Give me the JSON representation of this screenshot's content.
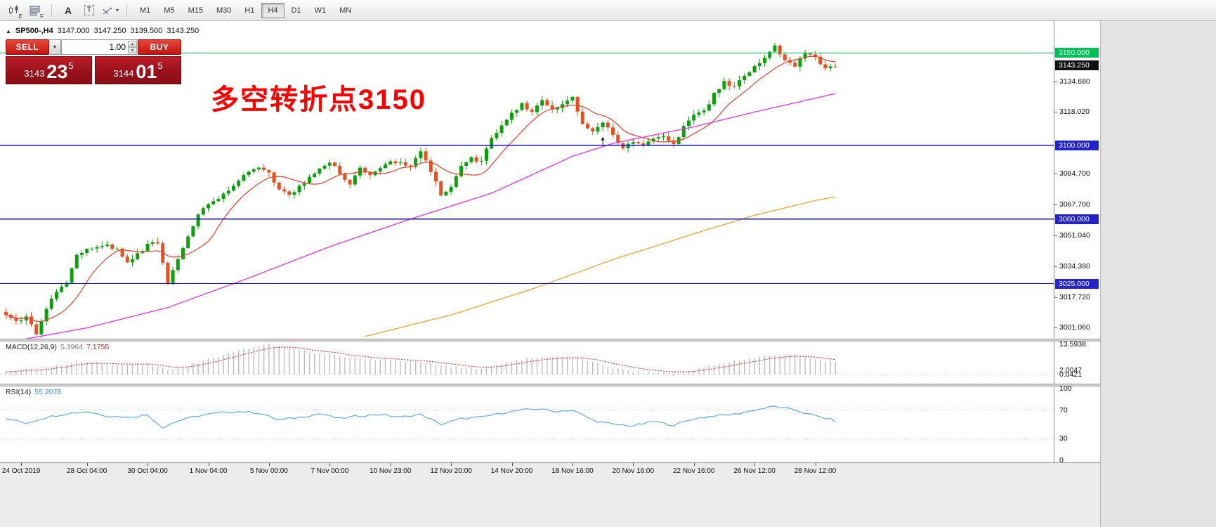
{
  "toolbar": {
    "icons": [
      {
        "name": "candlestick-chart-icon",
        "sub": "E"
      },
      {
        "name": "chart-profiles-icon",
        "sub": "F"
      },
      {
        "name": "text-label-icon",
        "glyph": "A"
      },
      {
        "name": "text-tool-icon",
        "glyph": "T"
      },
      {
        "name": "line-studies-icon"
      }
    ],
    "dropdown_caret": "▾",
    "timeframes": [
      "M1",
      "M5",
      "M15",
      "M30",
      "H1",
      "H4",
      "D1",
      "W1",
      "MN"
    ],
    "active_timeframe": "H4"
  },
  "chart": {
    "header": {
      "marker": "▲",
      "symbol": "SP500-,H4",
      "open": "3147.000",
      "high": "3147.250",
      "low": "3139.500",
      "close": "3143.250"
    },
    "trade_panel": {
      "sell_label": "SELL",
      "buy_label": "BUY",
      "volume": "1.00",
      "bid": {
        "prefix": "3143",
        "big": "23",
        "sup": "5"
      },
      "ask": {
        "prefix": "3144",
        "big": "01",
        "sup": "5"
      },
      "icons": {
        "dropdown": "▼",
        "spin_up": "▲",
        "spin_down": "▼"
      }
    },
    "annotation": "多空转折点3150",
    "price_axis": {
      "badges": [
        {
          "text": "3150.000",
          "price": 3150.0,
          "type": "green"
        },
        {
          "text": "3143.250",
          "price": 3143.25,
          "type": "black"
        },
        {
          "text": "3100.000",
          "price": 3100.0,
          "type": "blue"
        },
        {
          "text": "3060.000",
          "price": 3060.0,
          "type": "blue"
        },
        {
          "text": "3025.000",
          "price": 3025.0,
          "type": "blue"
        }
      ],
      "ticks": [
        {
          "text": "3134.680",
          "price": 3134.68
        },
        {
          "text": "3118.020",
          "price": 3118.02
        },
        {
          "text": "3084.700",
          "price": 3084.7
        },
        {
          "text": "3067.700",
          "price": 3067.7
        },
        {
          "text": "3051.040",
          "price": 3051.04
        },
        {
          "text": "3034.380",
          "price": 3034.38
        },
        {
          "text": "3017.720",
          "price": 3017.72
        },
        {
          "text": "3001.060",
          "price": 3001.06
        }
      ]
    }
  },
  "macd": {
    "label": "MACD(12,26,9)",
    "value1": "5.3964",
    "value2": "7.1755",
    "axis": [
      {
        "text": "13.5938",
        "value": 13.5938
      },
      {
        "text": "2.0047",
        "value": 2.0047
      },
      {
        "text": "0.0421",
        "value": 0.0421
      }
    ]
  },
  "rsi": {
    "label": "RSI(14)",
    "value": "55.2078",
    "axis": [
      {
        "text": "100",
        "value": 100
      },
      {
        "text": "70",
        "value": 70
      },
      {
        "text": "30",
        "value": 30
      },
      {
        "text": "0",
        "value": 0
      }
    ]
  },
  "time_axis": [
    {
      "bar": 3,
      "text": "24 Oct 2019"
    },
    {
      "bar": 16,
      "text": "28 Oct 04:00"
    },
    {
      "bar": 28,
      "text": "30 Oct 04:00"
    },
    {
      "bar": 40,
      "text": "1 Nov 04:00"
    },
    {
      "bar": 52,
      "text": "5 Nov 00:00"
    },
    {
      "bar": 64,
      "text": "7 Nov 00:00"
    },
    {
      "bar": 76,
      "text": "10 Nov 23:00"
    },
    {
      "bar": 88,
      "text": "12 Nov 20:00"
    },
    {
      "bar": 100,
      "text": "14 Nov 20:00"
    },
    {
      "bar": 112,
      "text": "18 Nov 16:00"
    },
    {
      "bar": 124,
      "text": "20 Nov 16:00"
    },
    {
      "bar": 136,
      "text": "22 Nov 16:00"
    },
    {
      "bar": 148,
      "text": "26 Nov 12:00"
    },
    {
      "bar": 160,
      "text": "28 Nov 12:00"
    }
  ],
  "colors": {
    "up": "#0da10d",
    "down": "#e8501e",
    "ma_fast": "#e8402a",
    "ma_mid": "#e632e6",
    "ma_slow": "#f0a030",
    "hline_green": "#00d45a",
    "hline_blue": "#1414cc",
    "badge_green": "#00bf56",
    "badge_black": "#101010",
    "badge_blue": "#2323cc",
    "macd_hist": "#bdbdbd",
    "macd_signal": "#e01414",
    "rsi_line": "#4da6e0",
    "annotation_red": "#ff0000"
  },
  "chart_data": {
    "type": "candlestick",
    "symbol": "SP500-",
    "timeframe": "H4",
    "bars": 165,
    "price_top": 3163.5,
    "price_bottom": 2995.1,
    "ohlc_header": {
      "open": 3147.0,
      "high": 3147.25,
      "low": 3139.5,
      "close": 3143.25
    },
    "current_price": 3143.25,
    "close_anchors": [
      [
        0,
        3008
      ],
      [
        2,
        3004
      ],
      [
        4,
        3007
      ],
      [
        6,
        2997
      ],
      [
        8,
        3012
      ],
      [
        10,
        3020
      ],
      [
        12,
        3026
      ],
      [
        14,
        3040
      ],
      [
        16,
        3043
      ],
      [
        19,
        3046
      ],
      [
        22,
        3044
      ],
      [
        24,
        3036
      ],
      [
        26,
        3041
      ],
      [
        28,
        3046
      ],
      [
        30,
        3047
      ],
      [
        32,
        3026
      ],
      [
        34,
        3038
      ],
      [
        36,
        3050
      ],
      [
        38,
        3062
      ],
      [
        40,
        3068
      ],
      [
        43,
        3073
      ],
      [
        46,
        3080
      ],
      [
        48,
        3086
      ],
      [
        50,
        3088
      ],
      [
        52,
        3085
      ],
      [
        54,
        3076
      ],
      [
        56,
        3073
      ],
      [
        58,
        3078
      ],
      [
        60,
        3082
      ],
      [
        62,
        3088
      ],
      [
        64,
        3091
      ],
      [
        66,
        3085
      ],
      [
        68,
        3079
      ],
      [
        70,
        3087
      ],
      [
        72,
        3083
      ],
      [
        74,
        3088
      ],
      [
        76,
        3091
      ],
      [
        78,
        3090
      ],
      [
        80,
        3089
      ],
      [
        82,
        3097
      ],
      [
        84,
        3086
      ],
      [
        86,
        3073
      ],
      [
        88,
        3078
      ],
      [
        90,
        3088
      ],
      [
        92,
        3093
      ],
      [
        94,
        3091
      ],
      [
        96,
        3104
      ],
      [
        98,
        3110
      ],
      [
        100,
        3117
      ],
      [
        102,
        3122
      ],
      [
        104,
        3118
      ],
      [
        106,
        3125
      ],
      [
        108,
        3120
      ],
      [
        110,
        3122
      ],
      [
        112,
        3126
      ],
      [
        114,
        3112
      ],
      [
        116,
        3108
      ],
      [
        118,
        3113
      ],
      [
        120,
        3105
      ],
      [
        122,
        3099
      ],
      [
        124,
        3102
      ],
      [
        126,
        3100
      ],
      [
        128,
        3104
      ],
      [
        130,
        3105
      ],
      [
        132,
        3100
      ],
      [
        134,
        3110
      ],
      [
        136,
        3116
      ],
      [
        138,
        3118
      ],
      [
        140,
        3128
      ],
      [
        142,
        3134
      ],
      [
        144,
        3132
      ],
      [
        146,
        3138
      ],
      [
        148,
        3142
      ],
      [
        150,
        3148
      ],
      [
        152,
        3154
      ],
      [
        154,
        3146
      ],
      [
        156,
        3143
      ],
      [
        158,
        3150
      ],
      [
        160,
        3148
      ],
      [
        162,
        3141
      ],
      [
        164,
        3143.25
      ]
    ],
    "ma_mid_anchors": [
      [
        0,
        2993
      ],
      [
        16,
        3001
      ],
      [
        32,
        3012
      ],
      [
        48,
        3028
      ],
      [
        64,
        3045
      ],
      [
        80,
        3060
      ],
      [
        96,
        3074
      ],
      [
        112,
        3094
      ],
      [
        120,
        3101
      ],
      [
        136,
        3110
      ],
      [
        148,
        3118
      ],
      [
        164,
        3128
      ]
    ],
    "ma_slow_anchors": [
      [
        0,
        2960
      ],
      [
        40,
        2978
      ],
      [
        60,
        2990
      ],
      [
        72,
        2997
      ],
      [
        88,
        3008
      ],
      [
        104,
        3022
      ],
      [
        120,
        3038
      ],
      [
        136,
        3052
      ],
      [
        148,
        3062
      ],
      [
        160,
        3070
      ],
      [
        164,
        3072
      ]
    ],
    "hlines": [
      {
        "price": 3150.0,
        "color_key": "hline_green",
        "label": "3150.000"
      },
      {
        "price": 3100.0,
        "color_key": "hline_blue",
        "label": "3100.000"
      },
      {
        "price": 3060.0,
        "color_key": "hline_blue",
        "label": "3060.000"
      },
      {
        "price": 3025.0,
        "color_key": "hline_blue",
        "label": "3025.000"
      }
    ],
    "objects": [
      {
        "type": "arrow-up",
        "bar": 118,
        "price": 3105
      }
    ],
    "macd": {
      "hist_anchors": [
        [
          0,
          1.5
        ],
        [
          6,
          2.5
        ],
        [
          10,
          4
        ],
        [
          14,
          6
        ],
        [
          16,
          5.5
        ],
        [
          20,
          5
        ],
        [
          24,
          4.5
        ],
        [
          28,
          4.5
        ],
        [
          32,
          2.2
        ],
        [
          36,
          4
        ],
        [
          40,
          7
        ],
        [
          44,
          9.5
        ],
        [
          48,
          12
        ],
        [
          52,
          13.6
        ],
        [
          56,
          12
        ],
        [
          60,
          10
        ],
        [
          64,
          9
        ],
        [
          68,
          7.5
        ],
        [
          72,
          7
        ],
        [
          76,
          6.5
        ],
        [
          80,
          6
        ],
        [
          84,
          5
        ],
        [
          88,
          3.5
        ],
        [
          92,
          2.5
        ],
        [
          96,
          3.5
        ],
        [
          100,
          6
        ],
        [
          104,
          7.5
        ],
        [
          108,
          8
        ],
        [
          112,
          8
        ],
        [
          116,
          5.5
        ],
        [
          120,
          3
        ],
        [
          124,
          1.5
        ],
        [
          128,
          0.8
        ],
        [
          132,
          0.8
        ],
        [
          136,
          2
        ],
        [
          140,
          4
        ],
        [
          144,
          6
        ],
        [
          148,
          7.5
        ],
        [
          152,
          9
        ],
        [
          156,
          8.5
        ],
        [
          160,
          7
        ],
        [
          164,
          5.4
        ]
      ],
      "current_macd": 5.3964,
      "current_signal": 7.1755,
      "scale_max": 13.5938
    },
    "rsi": {
      "anchors": [
        [
          0,
          58
        ],
        [
          4,
          52
        ],
        [
          8,
          60
        ],
        [
          12,
          65
        ],
        [
          16,
          68
        ],
        [
          20,
          62
        ],
        [
          24,
          60
        ],
        [
          28,
          63
        ],
        [
          31,
          46
        ],
        [
          34,
          55
        ],
        [
          38,
          62
        ],
        [
          42,
          66
        ],
        [
          46,
          68
        ],
        [
          50,
          66
        ],
        [
          54,
          56
        ],
        [
          58,
          60
        ],
        [
          62,
          65
        ],
        [
          66,
          58
        ],
        [
          70,
          62
        ],
        [
          74,
          64
        ],
        [
          78,
          60
        ],
        [
          82,
          64
        ],
        [
          86,
          50
        ],
        [
          90,
          58
        ],
        [
          94,
          60
        ],
        [
          98,
          66
        ],
        [
          102,
          70
        ],
        [
          106,
          72
        ],
        [
          108,
          68
        ],
        [
          112,
          70
        ],
        [
          116,
          56
        ],
        [
          120,
          50
        ],
        [
          124,
          48
        ],
        [
          128,
          54
        ],
        [
          132,
          49
        ],
        [
          136,
          58
        ],
        [
          140,
          62
        ],
        [
          144,
          64
        ],
        [
          148,
          70
        ],
        [
          152,
          75
        ],
        [
          156,
          70
        ],
        [
          160,
          62
        ],
        [
          164,
          55
        ]
      ],
      "current": 55.2078,
      "levels": [
        70,
        30
      ]
    }
  }
}
